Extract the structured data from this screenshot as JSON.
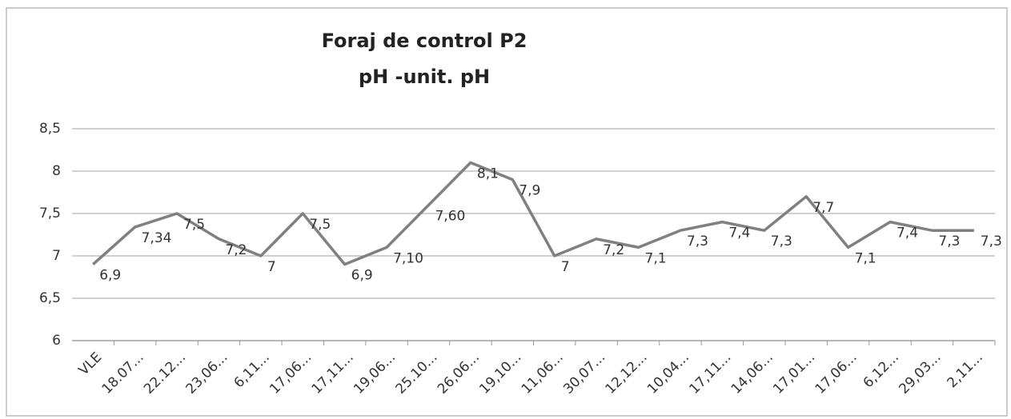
{
  "chart_data": {
    "type": "line",
    "title": "Foraj de control P2",
    "subtitle": "pH -unit. pH",
    "categories": [
      "VLE",
      "18.07...",
      "22.12...",
      "23,06...",
      "6,11...",
      "17,06...",
      "17,11...",
      "19,06...",
      "25.10...",
      "26,06...",
      "19,10...",
      "11,06...",
      "30,07...",
      "12,12...",
      "10,04...",
      "17,11...",
      "14,06...",
      "17,01...",
      "17,06...",
      "6,12...",
      "29,03...",
      "2,11..."
    ],
    "series": [
      {
        "color": "#808080",
        "values": [
          6.9,
          7.34,
          7.5,
          7.2,
          7,
          7.5,
          6.9,
          7.1,
          7.6,
          8.1,
          7.9,
          7,
          7.2,
          7.1,
          7.3,
          7.4,
          7.3,
          7.7,
          7.1,
          7.4,
          7.3,
          7.3
        ],
        "value_labels": [
          "6,9",
          "7,34",
          "7,5",
          "7,2",
          "7",
          "7,5",
          "6,9",
          "7,10",
          "7,60",
          "8,1",
          "7,9",
          "7",
          "7,2",
          "7,1",
          "7,3",
          "7,4",
          "7,3",
          "7,7",
          "7,1",
          "7,4",
          "7,3",
          "7,3"
        ]
      }
    ],
    "ylim": [
      6,
      8.5
    ],
    "yticks": [
      6,
      {
        "value": 6.5,
        "label": "6,5"
      },
      7,
      {
        "value": 7.5,
        "label": "7,5"
      },
      8,
      {
        "value": 8.5,
        "label": "8,5"
      }
    ],
    "grid": true
  }
}
